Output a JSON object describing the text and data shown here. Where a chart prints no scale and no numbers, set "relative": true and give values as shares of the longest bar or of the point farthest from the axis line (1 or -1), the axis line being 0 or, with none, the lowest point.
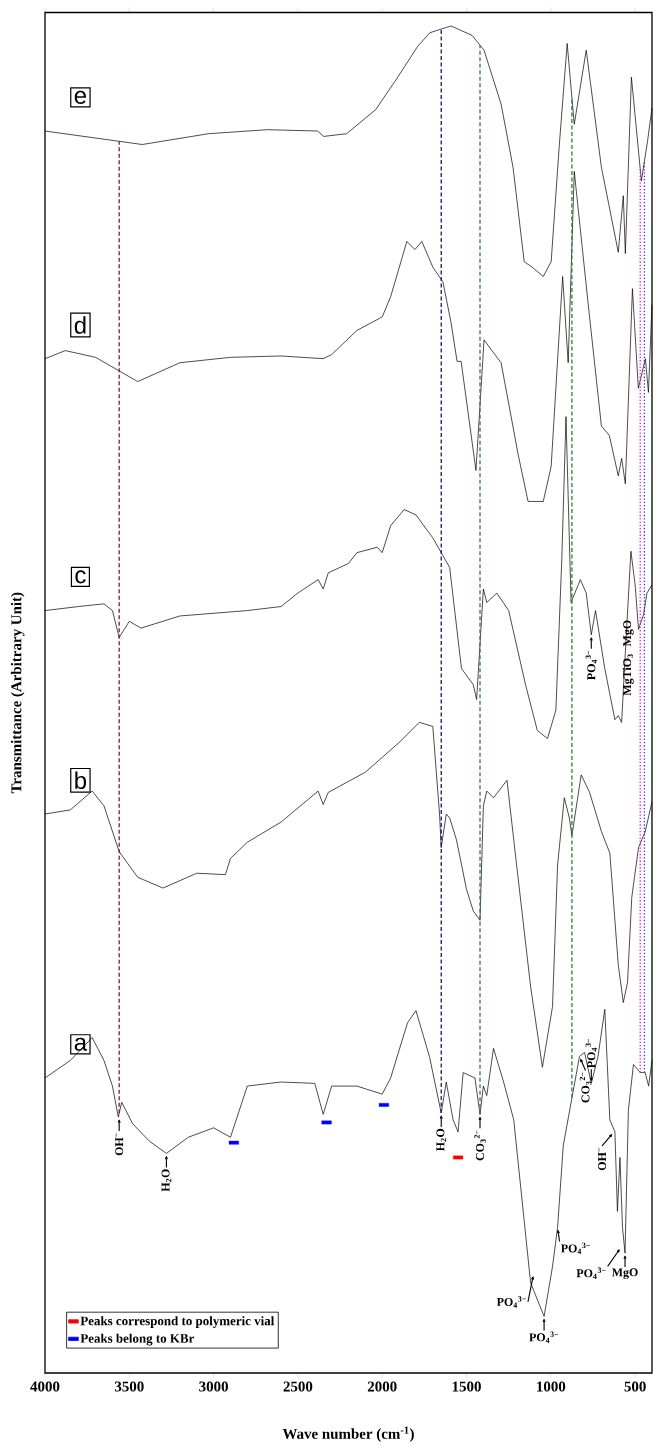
{
  "chart_data": {
    "type": "line",
    "relative": true,
    "xlabel": "Wave number (cm$^{-1}$)",
    "ylabel": "Transmittance (Arbitrary Unit)",
    "xlim": [
      4000,
      400
    ],
    "xticks": [
      4000,
      3500,
      3000,
      2500,
      2000,
      1500,
      1000,
      500
    ],
    "legend": "bottom left",
    "series": [
      {
        "name": "a",
        "type": "line",
        "color": "#000000",
        "x": [
          4000,
          3850,
          3720,
          3650,
          3600,
          3565,
          3545,
          3480,
          3380,
          3280,
          3150,
          3000,
          2900,
          2800,
          2600,
          2400,
          2350,
          2300,
          2150,
          2000,
          1950,
          1850,
          1800,
          1720,
          1650,
          1620,
          1580,
          1550,
          1520,
          1450,
          1420,
          1400,
          1380,
          1340,
          1280,
          1220,
          1120,
          1040,
          990,
          960,
          926,
          830,
          800,
          760,
          720,
          680,
          650,
          620,
          605,
          590,
          575,
          560,
          540,
          510,
          470,
          440,
          420,
          400
        ],
        "values": [
          0.219,
          0.232,
          0.249,
          0.232,
          0.213,
          0.19,
          0.201,
          0.185,
          0.172,
          0.163,
          0.175,
          0.182,
          0.175,
          0.213,
          0.216,
          0.215,
          0.192,
          0.213,
          0.213,
          0.207,
          0.219,
          0.26,
          0.269,
          0.235,
          0.193,
          0.216,
          0.188,
          0.179,
          0.223,
          0.219,
          0.192,
          0.213,
          0.206,
          0.241,
          0.216,
          0.188,
          0.067,
          0.042,
          0.079,
          0.108,
          0.169,
          0.235,
          0.238,
          0.215,
          0.235,
          0.27,
          0.188,
          0.179,
          0.12,
          0.16,
          0.108,
          0.089,
          0.195,
          0.229,
          0.223,
          0.223,
          0.213,
          0.232
        ]
      },
      {
        "name": "b",
        "type": "line",
        "color": "#000000",
        "x": [
          4000,
          3850,
          3720,
          3650,
          3560,
          3450,
          3300,
          3100,
          2930,
          2900,
          2800,
          2600,
          2380,
          2350,
          2320,
          2100,
          1900,
          1780,
          1700,
          1660,
          1650,
          1620,
          1600,
          1560,
          1500,
          1460,
          1420,
          1400,
          1380,
          1340,
          1260,
          1200,
          1120,
          1050,
          990,
          960,
          920,
          890,
          875,
          820,
          770,
          700,
          650,
          600,
          570,
          545,
          520,
          480,
          440,
          400
        ],
        "values": [
          0.415,
          0.418,
          0.432,
          0.421,
          0.387,
          0.368,
          0.36,
          0.371,
          0.37,
          0.382,
          0.394,
          0.409,
          0.432,
          0.422,
          0.431,
          0.446,
          0.468,
          0.483,
          0.48,
          0.415,
          0.39,
          0.415,
          0.412,
          0.396,
          0.359,
          0.343,
          0.336,
          0.421,
          0.432,
          0.427,
          0.44,
          0.374,
          0.287,
          0.227,
          0.272,
          0.377,
          0.427,
          0.412,
          0.399,
          0.444,
          0.431,
          0.402,
          0.386,
          0.303,
          0.275,
          0.29,
          0.353,
          0.39,
          0.402,
          0.424
        ]
      },
      {
        "name": "c",
        "type": "line",
        "color": "#000000",
        "x": [
          4000,
          3800,
          3650,
          3600,
          3560,
          3500,
          3430,
          3200,
          2800,
          2600,
          2500,
          2380,
          2350,
          2320,
          2200,
          2150,
          2030,
          2000,
          1950,
          1870,
          1800,
          1700,
          1600,
          1530,
          1460,
          1440,
          1400,
          1380,
          1320,
          1250,
          1150,
          1080,
          1020,
          970,
          935,
          910,
          880,
          825,
          790,
          760,
          735,
          680,
          620,
          600,
          580,
          555,
          525,
          500,
          480,
          450,
          430,
          400
        ],
        "values": [
          0.566,
          0.569,
          0.571,
          0.566,
          0.546,
          0.558,
          0.553,
          0.562,
          0.566,
          0.569,
          0.579,
          0.589,
          0.582,
          0.594,
          0.601,
          0.609,
          0.613,
          0.609,
          0.629,
          0.641,
          0.637,
          0.62,
          0.598,
          0.523,
          0.511,
          0.5,
          0.582,
          0.572,
          0.579,
          0.566,
          0.511,
          0.477,
          0.471,
          0.492,
          0.604,
          0.71,
          0.572,
          0.589,
          0.579,
          0.548,
          0.566,
          0.523,
          0.485,
          0.488,
          0.483,
          0.542,
          0.61,
          0.585,
          0.552,
          0.563,
          0.579,
          0.585
        ]
      },
      {
        "name": "d",
        "type": "line",
        "color": "#000000",
        "x": [
          4000,
          3880,
          3700,
          3450,
          3200,
          2900,
          2600,
          2350,
          2300,
          2150,
          2000,
          1950,
          1854,
          1806,
          1765,
          1700,
          1640,
          1592,
          1556,
          1532,
          1444,
          1396,
          1355,
          1295,
          1194,
          1135,
          1045,
          998,
          930,
          897,
          861,
          778,
          700,
          653,
          600,
          580,
          558,
          516,
          481,
          439,
          421,
          400
        ],
        "values": [
          0.753,
          0.759,
          0.754,
          0.736,
          0.75,
          0.754,
          0.755,
          0.753,
          0.756,
          0.774,
          0.784,
          0.799,
          0.84,
          0.834,
          0.84,
          0.821,
          0.81,
          0.78,
          0.751,
          0.751,
          0.67,
          0.767,
          0.76,
          0.75,
          0.682,
          0.647,
          0.647,
          0.673,
          0.814,
          0.75,
          0.892,
          0.793,
          0.703,
          0.696,
          0.666,
          0.679,
          0.66,
          0.805,
          0.731,
          0.753,
          0.728,
          0.793
        ]
      },
      {
        "name": "e",
        "type": "line",
        "color": "#000000",
        "x": [
          4000,
          3423,
          3031,
          2680,
          2383,
          2347,
          2211,
          2038,
          1913,
          1789,
          1717,
          1592,
          1467,
          1396,
          1295,
          1224,
          1158,
          1111,
          1045,
          998,
          950,
          903,
          861,
          790,
          700,
          641,
          600,
          570,
          558,
          522,
          463,
          427,
          400
        ],
        "values": [
          0.922,
          0.912,
          0.92,
          0.923,
          0.922,
          0.918,
          0.92,
          0.938,
          0.961,
          0.985,
          0.995,
          1.0,
          0.993,
          0.982,
          0.942,
          0.895,
          0.825,
          0.821,
          0.814,
          0.825,
          0.911,
          0.987,
          0.927,
          0.982,
          0.895,
          0.858,
          0.832,
          0.874,
          0.831,
          0.962,
          0.885,
          0.914,
          0.939
        ]
      },
      {
        "name": "Peaks correspond to polymeric vial",
        "type": "scatter",
        "color": "#ff0000",
        "x": [
          1550
        ],
        "values": [
          0.16
        ]
      },
      {
        "name": "Peaks belong to KBr",
        "type": "scatter",
        "color": "#0000ff",
        "x": [
          2880,
          2330,
          1990
        ],
        "values": [
          0.171,
          0.186,
          0.199
        ]
      }
    ],
    "ref_lines": [
      {
        "axis": "x",
        "value": 3560,
        "color": "#8b1a1a",
        "line_style": "dashed"
      },
      {
        "axis": "x",
        "value": 1650,
        "color": "#1a1a6e",
        "line_style": "dashed"
      },
      {
        "axis": "x",
        "value": 1420,
        "color": "#2e7d32",
        "line_style": "dashed"
      },
      {
        "axis": "x",
        "value": 875,
        "color": "#2e7d32",
        "line_style": "dashed"
      },
      {
        "axis": "x",
        "value": 470,
        "color": "#ff00ff",
        "line_style": "dotted"
      },
      {
        "axis": "x",
        "value": 445,
        "color": "#3333cc",
        "line_style": "dotted"
      }
    ],
    "annotations": [
      {
        "text": "OH$^{−}$",
        "x": 3560,
        "y": 0.19
      },
      {
        "text": "H$_{2}$O",
        "x": 3280,
        "y": 0.163
      },
      {
        "text": "H$_{2}$O",
        "x": 1650,
        "y": 0.193
      },
      {
        "text": "CO$_{3}$$^{2−}$",
        "x": 1420,
        "y": 0.192
      },
      {
        "text": "CO$_{3}$$^{2−}$",
        "x": 830,
        "y": 0.235
      },
      {
        "text": "PO$_{4}$$^{3−}$",
        "x": 760,
        "y": 0.215
      },
      {
        "text": "OH$^{−}$",
        "x": 625,
        "y": 0.179
      },
      {
        "text": "PO$_{4}$$^{3−}$",
        "x": 580,
        "y": 0.094
      },
      {
        "text": "MgO",
        "x": 560,
        "y": 0.089
      },
      {
        "text": "PO$_{4}$$^{3−}$",
        "x": 960,
        "y": 0.108
      },
      {
        "text": "PO$_{4}$$^{3−}$",
        "x": 1100,
        "y": 0.075
      },
      {
        "text": "PO$_{4}$$^{3−}$",
        "x": 1040,
        "y": 0.042
      },
      {
        "text": "PO$_{4}$$^{3−}$",
        "x": 760,
        "y": 0.548
      },
      {
        "text": "MgTiO$_{3}$",
        "x": 470,
        "y": 0.535
      },
      {
        "text": "MgO",
        "x": 445,
        "y": 0.56
      }
    ]
  }
}
